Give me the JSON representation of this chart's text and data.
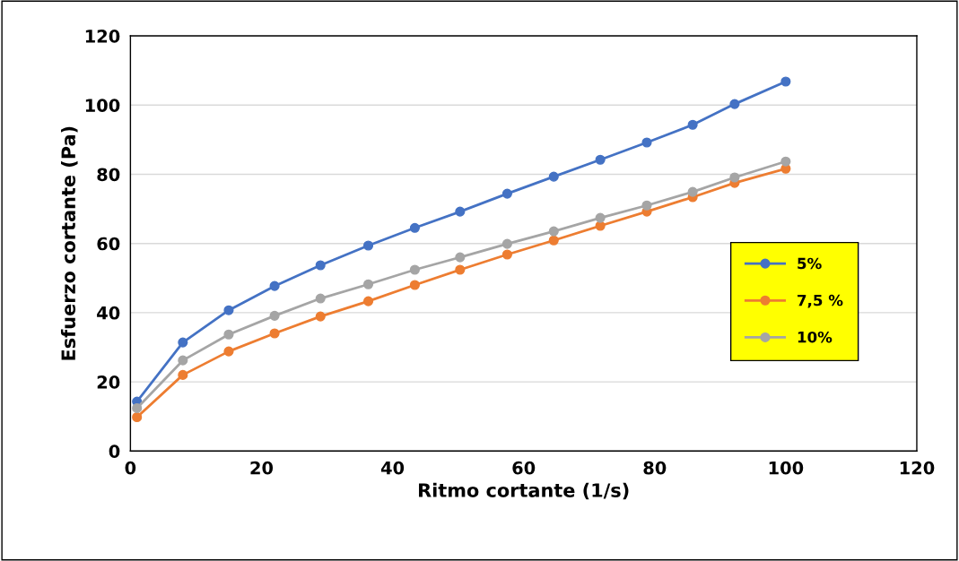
{
  "chart_data": {
    "type": "line",
    "xlabel": "Ritmo cortante (1/s)",
    "ylabel": "Esfuerzo cortante (Pa)",
    "x": [
      1,
      8,
      15,
      22,
      29,
      36.3,
      43.4,
      50.3,
      57.5,
      64.6,
      71.7,
      78.8,
      85.8,
      92.2,
      100
    ],
    "series": [
      {
        "name": "5%",
        "color": "#4472c4",
        "values": [
          14.3,
          31.4,
          40.7,
          47.7,
          53.7,
          59.4,
          64.5,
          69.2,
          74.4,
          79.3,
          84.2,
          89.2,
          94.3,
          100.3,
          106.8
        ]
      },
      {
        "name": "7,5 %",
        "color": "#ed7d31",
        "values": [
          9.8,
          22,
          28.8,
          34,
          38.9,
          43.3,
          48,
          52.4,
          56.8,
          60.9,
          65.1,
          69.2,
          73.4,
          77.5,
          81.6
        ]
      },
      {
        "name": "10%",
        "color": "#a5a5a5",
        "values": [
          12.4,
          26.2,
          33.7,
          39.1,
          44.1,
          48.2,
          52.4,
          56,
          59.9,
          63.5,
          67.4,
          71,
          74.9,
          79.1,
          83.7
        ]
      }
    ],
    "xlim": [
      0,
      120
    ],
    "xticks": [
      0,
      20,
      40,
      60,
      80,
      100,
      120
    ],
    "ylim": [
      0,
      120
    ],
    "yticks": [
      0,
      20,
      40,
      60,
      80,
      100,
      120
    ],
    "grid": "y",
    "legend": "right",
    "marker": "circle",
    "line_style": "solid"
  }
}
